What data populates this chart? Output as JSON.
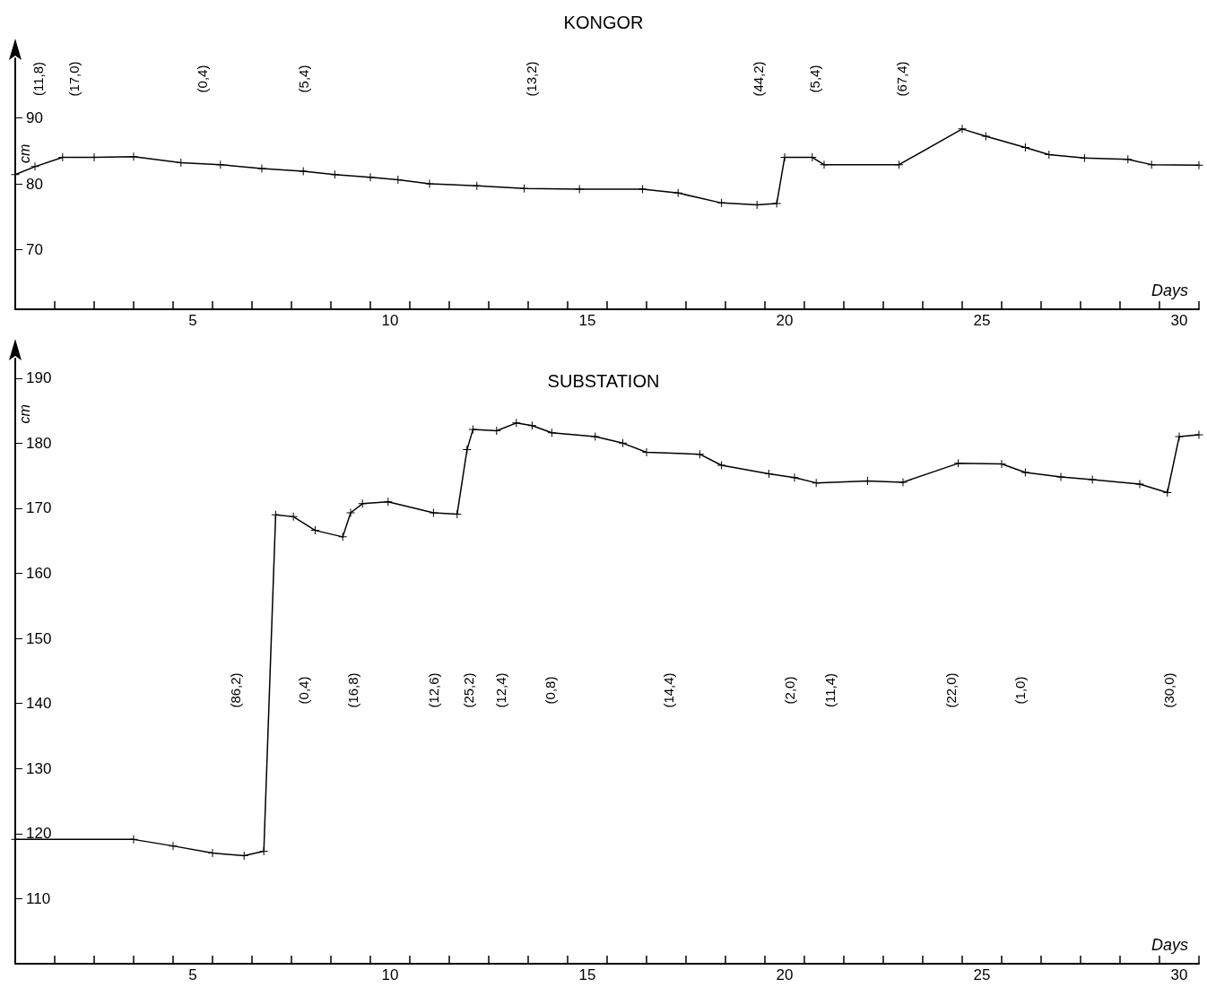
{
  "chart_data": [
    {
      "type": "line",
      "title": "KONGOR",
      "xlabel": "Days",
      "ylabel": "cm",
      "marker": "cross",
      "line_style": "solid",
      "xlim": [
        0.5,
        30.5
      ],
      "ylim": [
        61,
        99
      ],
      "yticks": [
        70,
        80,
        90
      ],
      "xticks": [
        {
          "value": 0.5,
          "label": null
        },
        {
          "value": 1.5,
          "label": null
        },
        {
          "value": 2.5,
          "label": null
        },
        {
          "value": 3.5,
          "label": null
        },
        {
          "value": 4.5,
          "label": null
        },
        5,
        {
          "value": 5.5,
          "label": null
        },
        {
          "value": 6.5,
          "label": null
        },
        {
          "value": 7.5,
          "label": null
        },
        {
          "value": 8.5,
          "label": null
        },
        {
          "value": 9.5,
          "label": null
        },
        10,
        {
          "value": 10.5,
          "label": null
        },
        {
          "value": 11.5,
          "label": null
        },
        {
          "value": 12.5,
          "label": null
        },
        {
          "value": 13.5,
          "label": null
        },
        {
          "value": 14.5,
          "label": null
        },
        15,
        {
          "value": 15.5,
          "label": null
        },
        {
          "value": 16.5,
          "label": null
        },
        {
          "value": 17.5,
          "label": null
        },
        {
          "value": 18.5,
          "label": null
        },
        {
          "value": 19.5,
          "label": null
        },
        20,
        {
          "value": 20.5,
          "label": null
        },
        {
          "value": 21.5,
          "label": null
        },
        {
          "value": 22.5,
          "label": null
        },
        {
          "value": 23.5,
          "label": null
        },
        {
          "value": 24.5,
          "label": null
        },
        25,
        {
          "value": 25.5,
          "label": null
        },
        {
          "value": 26.5,
          "label": null
        },
        {
          "value": 27.5,
          "label": null
        },
        {
          "value": 28.5,
          "label": null
        },
        {
          "value": 29.5,
          "label": null
        },
        30,
        {
          "value": 30.5,
          "label": null
        }
      ],
      "x": [
        0.5,
        1.0,
        1.7,
        2.5,
        3.5,
        4.7,
        5.7,
        6.75,
        7.8,
        8.6,
        9.5,
        10.2,
        11.0,
        12.2,
        13.4,
        14.8,
        16.4,
        17.3,
        18.4,
        19.3,
        19.8,
        20.0,
        20.7,
        21.0,
        22.9,
        24.5,
        25.1,
        26.1,
        26.7,
        27.6,
        28.7,
        29.3,
        30.5
      ],
      "series": [
        {
          "color": "#000000",
          "values": [
            81.4,
            82.6,
            84,
            84,
            84.1,
            83.2,
            82.9,
            82.3,
            81.9,
            81.4,
            81,
            80.6,
            80,
            79.7,
            79.3,
            79.2,
            79.2,
            78.6,
            77.1,
            76.8,
            77,
            84,
            84,
            82.9,
            82.9,
            88.3,
            87.2,
            85.5,
            84.4,
            83.9,
            83.7,
            82.9,
            82.8
          ]
        }
      ],
      "annotations": [
        "(11,8)",
        "(17,0)",
        "(0,4)",
        "(5,4)",
        "(13,2)",
        "(44,2)",
        "(5,4)",
        "(67,4)"
      ]
    },
    {
      "type": "line",
      "title": "SUBSTATION",
      "xlabel": "Days",
      "ylabel": "cm",
      "marker": "cross",
      "line_style": "solid",
      "xlim": [
        0.5,
        30.5
      ],
      "ylim": [
        100,
        193
      ],
      "yticks": [
        110,
        120,
        130,
        140,
        150,
        160,
        170,
        180,
        190
      ],
      "xticks": [
        {
          "value": 0.5,
          "label": null
        },
        {
          "value": 1.5,
          "label": null
        },
        {
          "value": 2.5,
          "label": null
        },
        {
          "value": 3.5,
          "label": null
        },
        {
          "value": 4.5,
          "label": null
        },
        5,
        {
          "value": 5.5,
          "label": null
        },
        {
          "value": 6.5,
          "label": null
        },
        {
          "value": 7.5,
          "label": null
        },
        {
          "value": 8.5,
          "label": null
        },
        {
          "value": 9.5,
          "label": null
        },
        10,
        {
          "value": 10.5,
          "label": null
        },
        {
          "value": 11.5,
          "label": null
        },
        {
          "value": 12.5,
          "label": null
        },
        {
          "value": 13.5,
          "label": null
        },
        {
          "value": 14.5,
          "label": null
        },
        15,
        {
          "value": 15.5,
          "label": null
        },
        {
          "value": 16.5,
          "label": null
        },
        {
          "value": 17.5,
          "label": null
        },
        {
          "value": 18.5,
          "label": null
        },
        {
          "value": 19.5,
          "label": null
        },
        20,
        {
          "value": 20.5,
          "label": null
        },
        {
          "value": 21.5,
          "label": null
        },
        {
          "value": 22.5,
          "label": null
        },
        {
          "value": 23.5,
          "label": null
        },
        {
          "value": 24.5,
          "label": null
        },
        25,
        {
          "value": 25.5,
          "label": null
        },
        {
          "value": 26.5,
          "label": null
        },
        {
          "value": 27.5,
          "label": null
        },
        {
          "value": 28.5,
          "label": null
        },
        {
          "value": 29.5,
          "label": null
        },
        30,
        {
          "value": 30.5,
          "label": null
        }
      ],
      "x": [
        0.5,
        3.5,
        4.5,
        5.5,
        6.3,
        6.8,
        7.1,
        7.55,
        8.1,
        8.8,
        9.0,
        9.3,
        9.95,
        11.1,
        11.7,
        11.95,
        12.1,
        12.7,
        13.2,
        13.6,
        14.1,
        15.2,
        15.9,
        16.5,
        17.85,
        18.4,
        19.6,
        20.25,
        20.8,
        22.1,
        23.0,
        24.4,
        25.5,
        26.1,
        27.0,
        27.8,
        29.0,
        29.7,
        30.0,
        30.5
      ],
      "series": [
        {
          "color": "#000000",
          "values": [
            119.1,
            119.1,
            118.1,
            117,
            116.6,
            117.3,
            169,
            168.7,
            166.6,
            165.6,
            169.3,
            170.7,
            171,
            169.3,
            169.1,
            179,
            182.1,
            181.9,
            183.1,
            182.7,
            181.6,
            181,
            180,
            178.6,
            178.3,
            176.6,
            175.3,
            174.7,
            173.9,
            174.2,
            174,
            176.9,
            176.8,
            175.5,
            174.8,
            174.4,
            173.7,
            172.4,
            181,
            181.3
          ]
        }
      ],
      "annotations": [
        "(86,2)",
        "(0,4)",
        "(16,8)",
        "(12,6)",
        "(25,2)",
        "(12,4)",
        "(0,8)",
        "(14,4)",
        "(2,0)",
        "(11,4)",
        "(22,0)",
        "(1,0)",
        "(30,0)"
      ]
    }
  ]
}
